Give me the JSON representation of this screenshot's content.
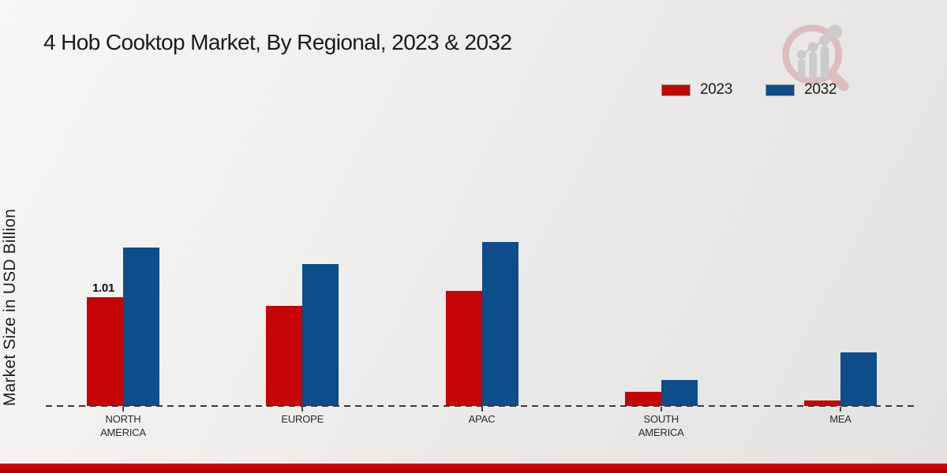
{
  "title": "4 Hob Cooktop Market, By Regional, 2023 & 2032",
  "y_axis_label": "Market Size in USD Billion",
  "colors": {
    "series_2023": "#c50505",
    "series_2032": "#0d4d89",
    "footer_bar": "#c10404",
    "axis_dash": "#3a3a3a"
  },
  "watermark_icon": "magnifier-growth-chart-logo",
  "chart_data": {
    "type": "bar",
    "categories": [
      "NORTH AMERICA",
      "EUROPE",
      "APAC",
      "SOUTH AMERICA",
      "MEA"
    ],
    "series": [
      {
        "name": "2023",
        "color": "#c50505",
        "values": [
          1.01,
          0.93,
          1.07,
          0.13,
          0.05
        ]
      },
      {
        "name": "2032",
        "color": "#0d4d89",
        "values": [
          1.47,
          1.32,
          1.52,
          0.24,
          0.5
        ]
      }
    ],
    "bar_labels": [
      {
        "category_index": 0,
        "series_index": 0,
        "text": "1.01"
      }
    ],
    "title": "4 Hob Cooktop Market, By Regional, 2023 & 2032",
    "xlabel": "",
    "ylabel": "Market Size in USD Billion",
    "ylim": [
      0,
      1.6
    ],
    "grid": false,
    "legend_position": "top-right",
    "baseline_style": "dashed",
    "y_ticks_visible": false
  }
}
